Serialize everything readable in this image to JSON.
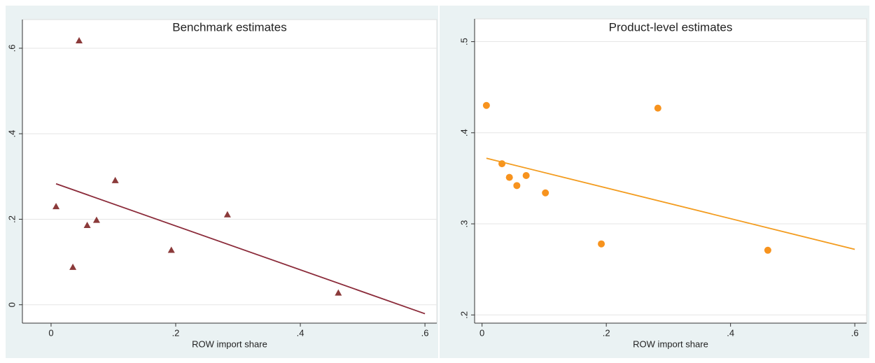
{
  "chart_data": [
    {
      "type": "scatter",
      "title": "Benchmark estimates",
      "x_label": "ROW import share",
      "xlim": [
        -0.046,
        0.619
      ],
      "ylim": [
        -0.043,
        0.667
      ],
      "xticks": [
        0,
        {
          "value": 0.2,
          "label": ".2"
        },
        {
          "value": 0.4,
          "label": ".4"
        },
        {
          "value": 0.6,
          "label": ".6"
        }
      ],
      "yticks": [
        0,
        {
          "value": 0.2,
          "label": ".2"
        },
        {
          "value": 0.4,
          "label": ".4"
        },
        {
          "value": 0.6,
          "label": ".6"
        }
      ],
      "grid": true,
      "series": [
        {
          "type": "scatter",
          "marker": "triangle",
          "color": "#8b3a3a",
          "x": [
            0.008,
            0.035,
            0.045,
            0.058,
            0.073,
            0.103,
            0.193,
            0.283,
            0.461
          ],
          "values": [
            0.23,
            0.088,
            0.618,
            0.186,
            0.198,
            0.291,
            0.128,
            0.211,
            0.028
          ]
        },
        {
          "type": "line",
          "color": "#8b2b3a",
          "x": [
            0.008,
            0.6
          ],
          "values": [
            0.283,
            -0.021
          ]
        }
      ]
    },
    {
      "type": "scatter",
      "title": "Product-level estimates",
      "x_label": "ROW import share",
      "xlim": [
        -0.012,
        0.619
      ],
      "ylim": [
        0.191,
        0.525
      ],
      "xticks": [
        0,
        {
          "value": 0.2,
          "label": ".2"
        },
        {
          "value": 0.4,
          "label": ".4"
        },
        {
          "value": 0.6,
          "label": ".6"
        }
      ],
      "yticks": [
        {
          "value": 0.2,
          "label": ".2"
        },
        {
          "value": 0.3,
          "label": ".3"
        },
        {
          "value": 0.4,
          "label": ".4"
        },
        {
          "value": 0.5,
          "label": ".5"
        }
      ],
      "grid": true,
      "series": [
        {
          "type": "scatter",
          "marker": "circle",
          "color": "#f7931e",
          "x": [
            0.007,
            0.032,
            0.044,
            0.056,
            0.071,
            0.102,
            0.192,
            0.283,
            0.46
          ],
          "values": [
            0.43,
            0.366,
            0.351,
            0.342,
            0.353,
            0.334,
            0.278,
            0.427,
            0.271
          ]
        },
        {
          "type": "line",
          "color": "#f39c1f",
          "x": [
            0.007,
            0.6
          ],
          "values": [
            0.372,
            0.272
          ]
        }
      ]
    }
  ]
}
